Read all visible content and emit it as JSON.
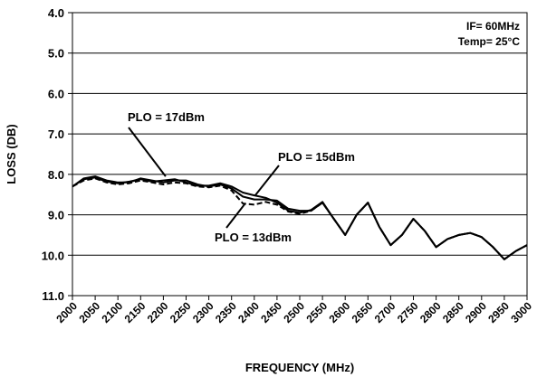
{
  "chart_data": {
    "type": "line",
    "title": "",
    "xlabel": "FREQUENCY (MHz)",
    "ylabel": "LOSS (DB)",
    "xlim": [
      2000,
      3000
    ],
    "ylim": [
      4.0,
      11.0
    ],
    "y_inverted": true,
    "grid": "horizontal",
    "x_tick_labels": [
      "2000",
      "2050",
      "2100",
      "2150",
      "2200",
      "2250",
      "2300",
      "2350",
      "2400",
      "2450",
      "2500",
      "2550",
      "2600",
      "2650",
      "2700",
      "2750",
      "2800",
      "2850",
      "2900",
      "2950",
      "3000"
    ],
    "x_tick_values": [
      2000,
      2050,
      2100,
      2150,
      2200,
      2250,
      2300,
      2350,
      2400,
      2450,
      2500,
      2550,
      2600,
      2650,
      2700,
      2750,
      2800,
      2850,
      2900,
      2950,
      3000
    ],
    "y_tick_labels": [
      "4.0",
      "5.0",
      "6.0",
      "7.0",
      "8.0",
      "9.0",
      "10.0",
      "11.0"
    ],
    "y_tick_values": [
      4,
      5,
      6,
      7,
      8,
      9,
      10,
      11
    ],
    "conditions": [
      "IF= 60MHz",
      "Temp= 25°C"
    ],
    "annotations": [
      {
        "text": "PLO = 17dBm",
        "series": "PLO = 17dBm",
        "points_to": [
          2205,
          8.05
        ]
      },
      {
        "text": "PLO = 15dBm",
        "series": "PLO = 15dBm",
        "points_to": [
          2402,
          8.52
        ]
      },
      {
        "text": "PLO = 13dBm",
        "series": "PLO = 13dBm",
        "points_to": [
          2380,
          8.72
        ]
      }
    ],
    "series": [
      {
        "name": "PLO = 17dBm",
        "style": "solid",
        "color": "#000000",
        "x": [
          2000,
          2025,
          2050,
          2075,
          2100,
          2125,
          2150,
          2175,
          2200,
          2225,
          2250,
          2275,
          2300,
          2325,
          2350,
          2375,
          2400,
          2425,
          2450,
          2475,
          2500,
          2525,
          2550,
          2575,
          2600,
          2625,
          2650,
          2675,
          2700,
          2725,
          2750,
          2775,
          2800,
          2825,
          2850,
          2875,
          2900,
          2925,
          2950,
          2975,
          3000
        ],
        "values": [
          8.3,
          8.1,
          8.05,
          8.15,
          8.2,
          8.2,
          8.1,
          8.15,
          8.2,
          8.15,
          8.15,
          8.25,
          8.3,
          8.25,
          8.35,
          8.55,
          8.62,
          8.62,
          8.65,
          8.85,
          8.9,
          8.9,
          8.7,
          9.1,
          9.5,
          9.0,
          8.7,
          9.3,
          9.75,
          9.5,
          9.1,
          9.4,
          9.8,
          9.6,
          9.5,
          9.45,
          9.55,
          9.8,
          10.1,
          9.9,
          9.75
        ]
      },
      {
        "name": "PLO = 15dBm",
        "style": "solid",
        "color": "#000000",
        "x": [
          2000,
          2025,
          2050,
          2075,
          2100,
          2125,
          2150,
          2175,
          2200,
          2225,
          2250,
          2275,
          2300,
          2325,
          2350,
          2375,
          2400,
          2425,
          2450,
          2475,
          2500,
          2525,
          2550,
          2575,
          2600,
          2625,
          2650,
          2675,
          2700,
          2725,
          2750,
          2775,
          2800,
          2825,
          2850,
          2875,
          2900,
          2925,
          2950,
          2975,
          3000
        ],
        "values": [
          8.3,
          8.12,
          8.08,
          8.18,
          8.22,
          8.18,
          8.12,
          8.18,
          8.15,
          8.12,
          8.2,
          8.28,
          8.28,
          8.22,
          8.3,
          8.45,
          8.52,
          8.58,
          8.7,
          8.9,
          8.95,
          8.88,
          8.68,
          9.1,
          9.5,
          9.0,
          8.7,
          9.3,
          9.75,
          9.5,
          9.1,
          9.4,
          9.8,
          9.6,
          9.5,
          9.45,
          9.55,
          9.8,
          10.1,
          9.9,
          9.75
        ]
      },
      {
        "name": "PLO = 13dBm",
        "style": "dashed",
        "color": "#000000",
        "x": [
          2000,
          2025,
          2050,
          2075,
          2100,
          2125,
          2150,
          2175,
          2200,
          2225,
          2250,
          2275,
          2300,
          2325,
          2350,
          2375,
          2400,
          2425,
          2450,
          2475,
          2500,
          2525,
          2550,
          2575,
          2600,
          2625,
          2650,
          2675,
          2700,
          2725,
          2750,
          2775,
          2800,
          2825,
          2850,
          2875,
          2900,
          2925,
          2950,
          2975,
          3000
        ],
        "values": [
          8.3,
          8.15,
          8.1,
          8.2,
          8.25,
          8.22,
          8.15,
          8.2,
          8.25,
          8.2,
          8.22,
          8.3,
          8.32,
          8.28,
          8.4,
          8.72,
          8.75,
          8.68,
          8.75,
          8.92,
          8.98,
          8.9,
          8.7,
          9.1,
          9.5,
          9.0,
          8.7,
          9.3,
          9.75,
          9.5,
          9.1,
          9.4,
          9.8,
          9.6,
          9.5,
          9.45,
          9.55,
          9.8,
          10.1,
          9.9,
          9.75
        ]
      }
    ]
  }
}
